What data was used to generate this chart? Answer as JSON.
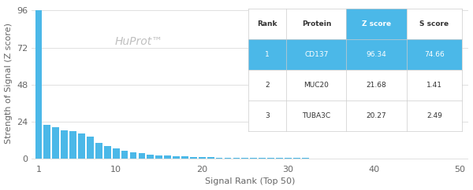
{
  "title": "HuProt™",
  "xlabel": "Signal Rank (Top 50)",
  "ylabel": "Strength of Signal (Z score)",
  "ylim": [
    -2,
    100
  ],
  "yticks": [
    0,
    24,
    48,
    72,
    96
  ],
  "xticks": [
    1,
    10,
    20,
    30,
    40,
    50
  ],
  "bar_color": "#4bb8e8",
  "bar_values": [
    96.34,
    21.68,
    20.27,
    18.5,
    17.8,
    16.2,
    14.5,
    10.2,
    8.1,
    6.5,
    5.2,
    4.3,
    3.5,
    2.8,
    2.3,
    1.9,
    1.6,
    1.4,
    1.2,
    1.0,
    0.9,
    0.8,
    0.7,
    0.65,
    0.6,
    0.55,
    0.5,
    0.45,
    0.42,
    0.38,
    0.35,
    0.32,
    0.3,
    0.28,
    0.26,
    0.24,
    0.22,
    0.2,
    0.18,
    0.17,
    0.15,
    0.14,
    0.13,
    0.12,
    0.11,
    0.1,
    0.09,
    0.08,
    0.07,
    0.06
  ],
  "table_blue": "#4bb8e8",
  "table_header": [
    "Rank",
    "Protein",
    "Z score",
    "S score"
  ],
  "table_data": [
    [
      "1",
      "CD137",
      "96.34",
      "74.66"
    ],
    [
      "2",
      "MUC20",
      "21.68",
      "1.41"
    ],
    [
      "3",
      "TUBA3C",
      "20.27",
      "2.49"
    ]
  ],
  "huprot_color": "#c0c0c0",
  "background_color": "#ffffff",
  "grid_color": "#e0e0e0",
  "text_dark": "#333333",
  "text_mid": "#666666"
}
